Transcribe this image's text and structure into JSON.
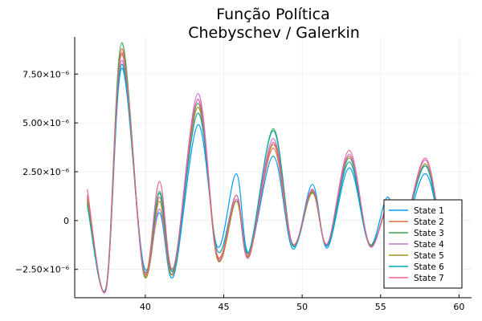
{
  "chart_data": {
    "type": "line",
    "title": [
      "Função Política",
      "Chebyschev / Galerkin"
    ],
    "xlabel": "",
    "ylabel": "",
    "xlim": [
      35.5,
      60.8
    ],
    "ylim": [
      -3.95e-06,
      9.4e-06
    ],
    "grid": true,
    "legend_position": "bottom-right",
    "x_ticks": [
      {
        "value": 40,
        "label": "40"
      },
      {
        "value": 45,
        "label": "45"
      },
      {
        "value": 50,
        "label": "50"
      },
      {
        "value": 55,
        "label": "55"
      },
      {
        "value": 60,
        "label": "60"
      }
    ],
    "y_ticks": [
      {
        "value": -2.5e-06,
        "label": "−2.50×10⁻⁶"
      },
      {
        "value": 0,
        "label": "0"
      },
      {
        "value": 2.5e-06,
        "label": "2.50×10⁻⁶"
      },
      {
        "value": 5e-06,
        "label": "5.00×10⁻⁶"
      },
      {
        "value": 7.5e-06,
        "label": "7.50×10⁻⁶"
      }
    ],
    "x": [
      36.3,
      37.5,
      38.5,
      39.9,
      40.9,
      41.8,
      43.35,
      44.6,
      45.8,
      46.6,
      48.15,
      49.4,
      50.65,
      51.6,
      53.0,
      54.3,
      55.45,
      56.3,
      57.85,
      59.1,
      60.2
    ],
    "series": [
      {
        "name": "State 1",
        "color": "#009AFA",
        "values": [
          1e-06,
          -3.5e-06,
          7.8e-06,
          -2.3e-06,
          4e-07,
          -2.85e-06,
          4.9e-06,
          -1.35e-06,
          2.4e-06,
          -1.65e-06,
          3.3e-06,
          -1.45e-06,
          1.85e-06,
          -1.4e-06,
          2.7e-06,
          -1.25e-06,
          1.2e-06,
          -1e-06,
          2.4e-06,
          -1.1e-06,
          5e-07
        ]
      },
      {
        "name": "State 2",
        "color": "#E36F47",
        "values": [
          1.3e-06,
          -3.45e-06,
          8.8e-06,
          -2.6e-06,
          1.2e-06,
          -2.5e-06,
          6.2e-06,
          -1.8e-06,
          1.3e-06,
          -1.7e-06,
          3.7e-06,
          -1.3e-06,
          1.5e-06,
          -1.2e-06,
          3.3e-06,
          -1.25e-06,
          6e-07,
          -1e-06,
          2.9e-06,
          -1.2e-06,
          3e-07
        ]
      },
      {
        "name": "State 3",
        "color": "#3EA44E",
        "values": [
          9e-07,
          -3.4e-06,
          9.1e-06,
          -2.75e-06,
          1.5e-06,
          -2.4e-06,
          6e-06,
          -1.95e-06,
          1e-06,
          -1.8e-06,
          4.7e-06,
          -1.25e-06,
          1.45e-06,
          -1.25e-06,
          3.2e-06,
          -1.2e-06,
          6.5e-07,
          -1e-06,
          2.8e-06,
          -1.3e-06,
          3e-07
        ]
      },
      {
        "name": "State 4",
        "color": "#C271D2",
        "values": [
          1.2e-06,
          -3.5e-06,
          8.2e-06,
          -2.65e-06,
          6e-07,
          -2.6e-06,
          6.5e-06,
          -1.9e-06,
          1.1e-06,
          -1.75e-06,
          4.2e-06,
          -1.3e-06,
          1.55e-06,
          -1.25e-06,
          3.4e-06,
          -1.3e-06,
          7e-07,
          -1.05e-06,
          3.1e-06,
          -1.25e-06,
          3e-07
        ]
      },
      {
        "name": "State 5",
        "color": "#AC8D18",
        "values": [
          1.1e-06,
          -3.45e-06,
          8.5e-06,
          -2.7e-06,
          1e-06,
          -2.7e-06,
          5.8e-06,
          -2e-06,
          1e-06,
          -1.8e-06,
          3.9e-06,
          -1.2e-06,
          1.4e-06,
          -1.2e-06,
          3e-06,
          -1.2e-06,
          6e-07,
          -1e-06,
          2.9e-06,
          -1.2e-06,
          3e-07
        ]
      },
      {
        "name": "State 6",
        "color": "#00A9AD",
        "values": [
          8e-07,
          -3.45e-06,
          8e-06,
          -2.5e-06,
          1.4e-06,
          -2.55e-06,
          5.5e-06,
          -1.55e-06,
          1.3e-06,
          -1.6e-06,
          4.6e-06,
          -1.3e-06,
          1.6e-06,
          -1.3e-06,
          3e-06,
          -1.25e-06,
          7e-07,
          -1e-06,
          2.8e-06,
          -1.3e-06,
          4e-07
        ]
      },
      {
        "name": "State 7",
        "color": "#ED5E93",
        "values": [
          1.6e-06,
          -3.55e-06,
          8.6e-06,
          -2.6e-06,
          2e-06,
          -2.45e-06,
          6.2e-06,
          -1.85e-06,
          1.3e-06,
          -1.9e-06,
          4e-06,
          -1.2e-06,
          1.6e-06,
          -1.2e-06,
          3.6e-06,
          -1.3e-06,
          7.5e-07,
          -1e-06,
          3.2e-06,
          -1.2e-06,
          3e-07
        ]
      }
    ]
  }
}
